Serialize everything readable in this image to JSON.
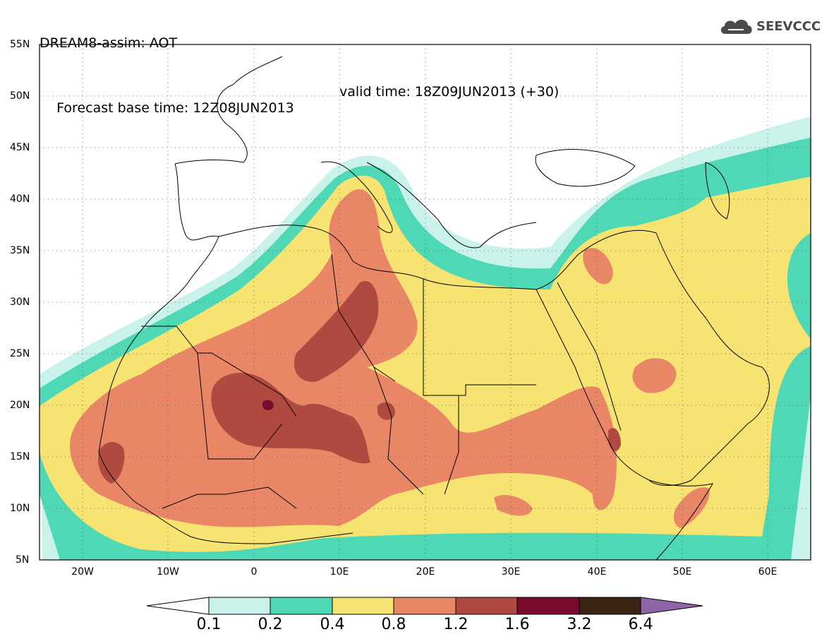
{
  "header": {
    "line1": "DREAM8-assim: AOT",
    "base_time": "Forecast base time: 12Z08JUN2013",
    "valid_time": "valid time: 18Z09JUN2013 (+30)"
  },
  "logo": {
    "text": "SEEVCCC",
    "icon": "cloud-icon"
  },
  "map": {
    "lat_labels": [
      "55N",
      "50N",
      "45N",
      "40N",
      "35N",
      "30N",
      "25N",
      "20N",
      "15N",
      "10N",
      "5N"
    ],
    "lon_labels": [
      "20W",
      "10W",
      "0",
      "10E",
      "20E",
      "30E",
      "40E",
      "50E",
      "60E"
    ],
    "extent": {
      "lon_min": -25,
      "lon_max": 65,
      "lat_min": 5,
      "lat_max": 55
    }
  },
  "colorbar": {
    "labels": [
      "0.1",
      "0.2",
      "0.4",
      "0.8",
      "1.2",
      "1.6",
      "3.2",
      "6.4"
    ],
    "colors": [
      "#ffffff",
      "#c8f2ea",
      "#4ed8b6",
      "#f6e372",
      "#e88666",
      "#b04a40",
      "#7a0b2c",
      "#3c2414",
      "#9065a8"
    ]
  }
}
